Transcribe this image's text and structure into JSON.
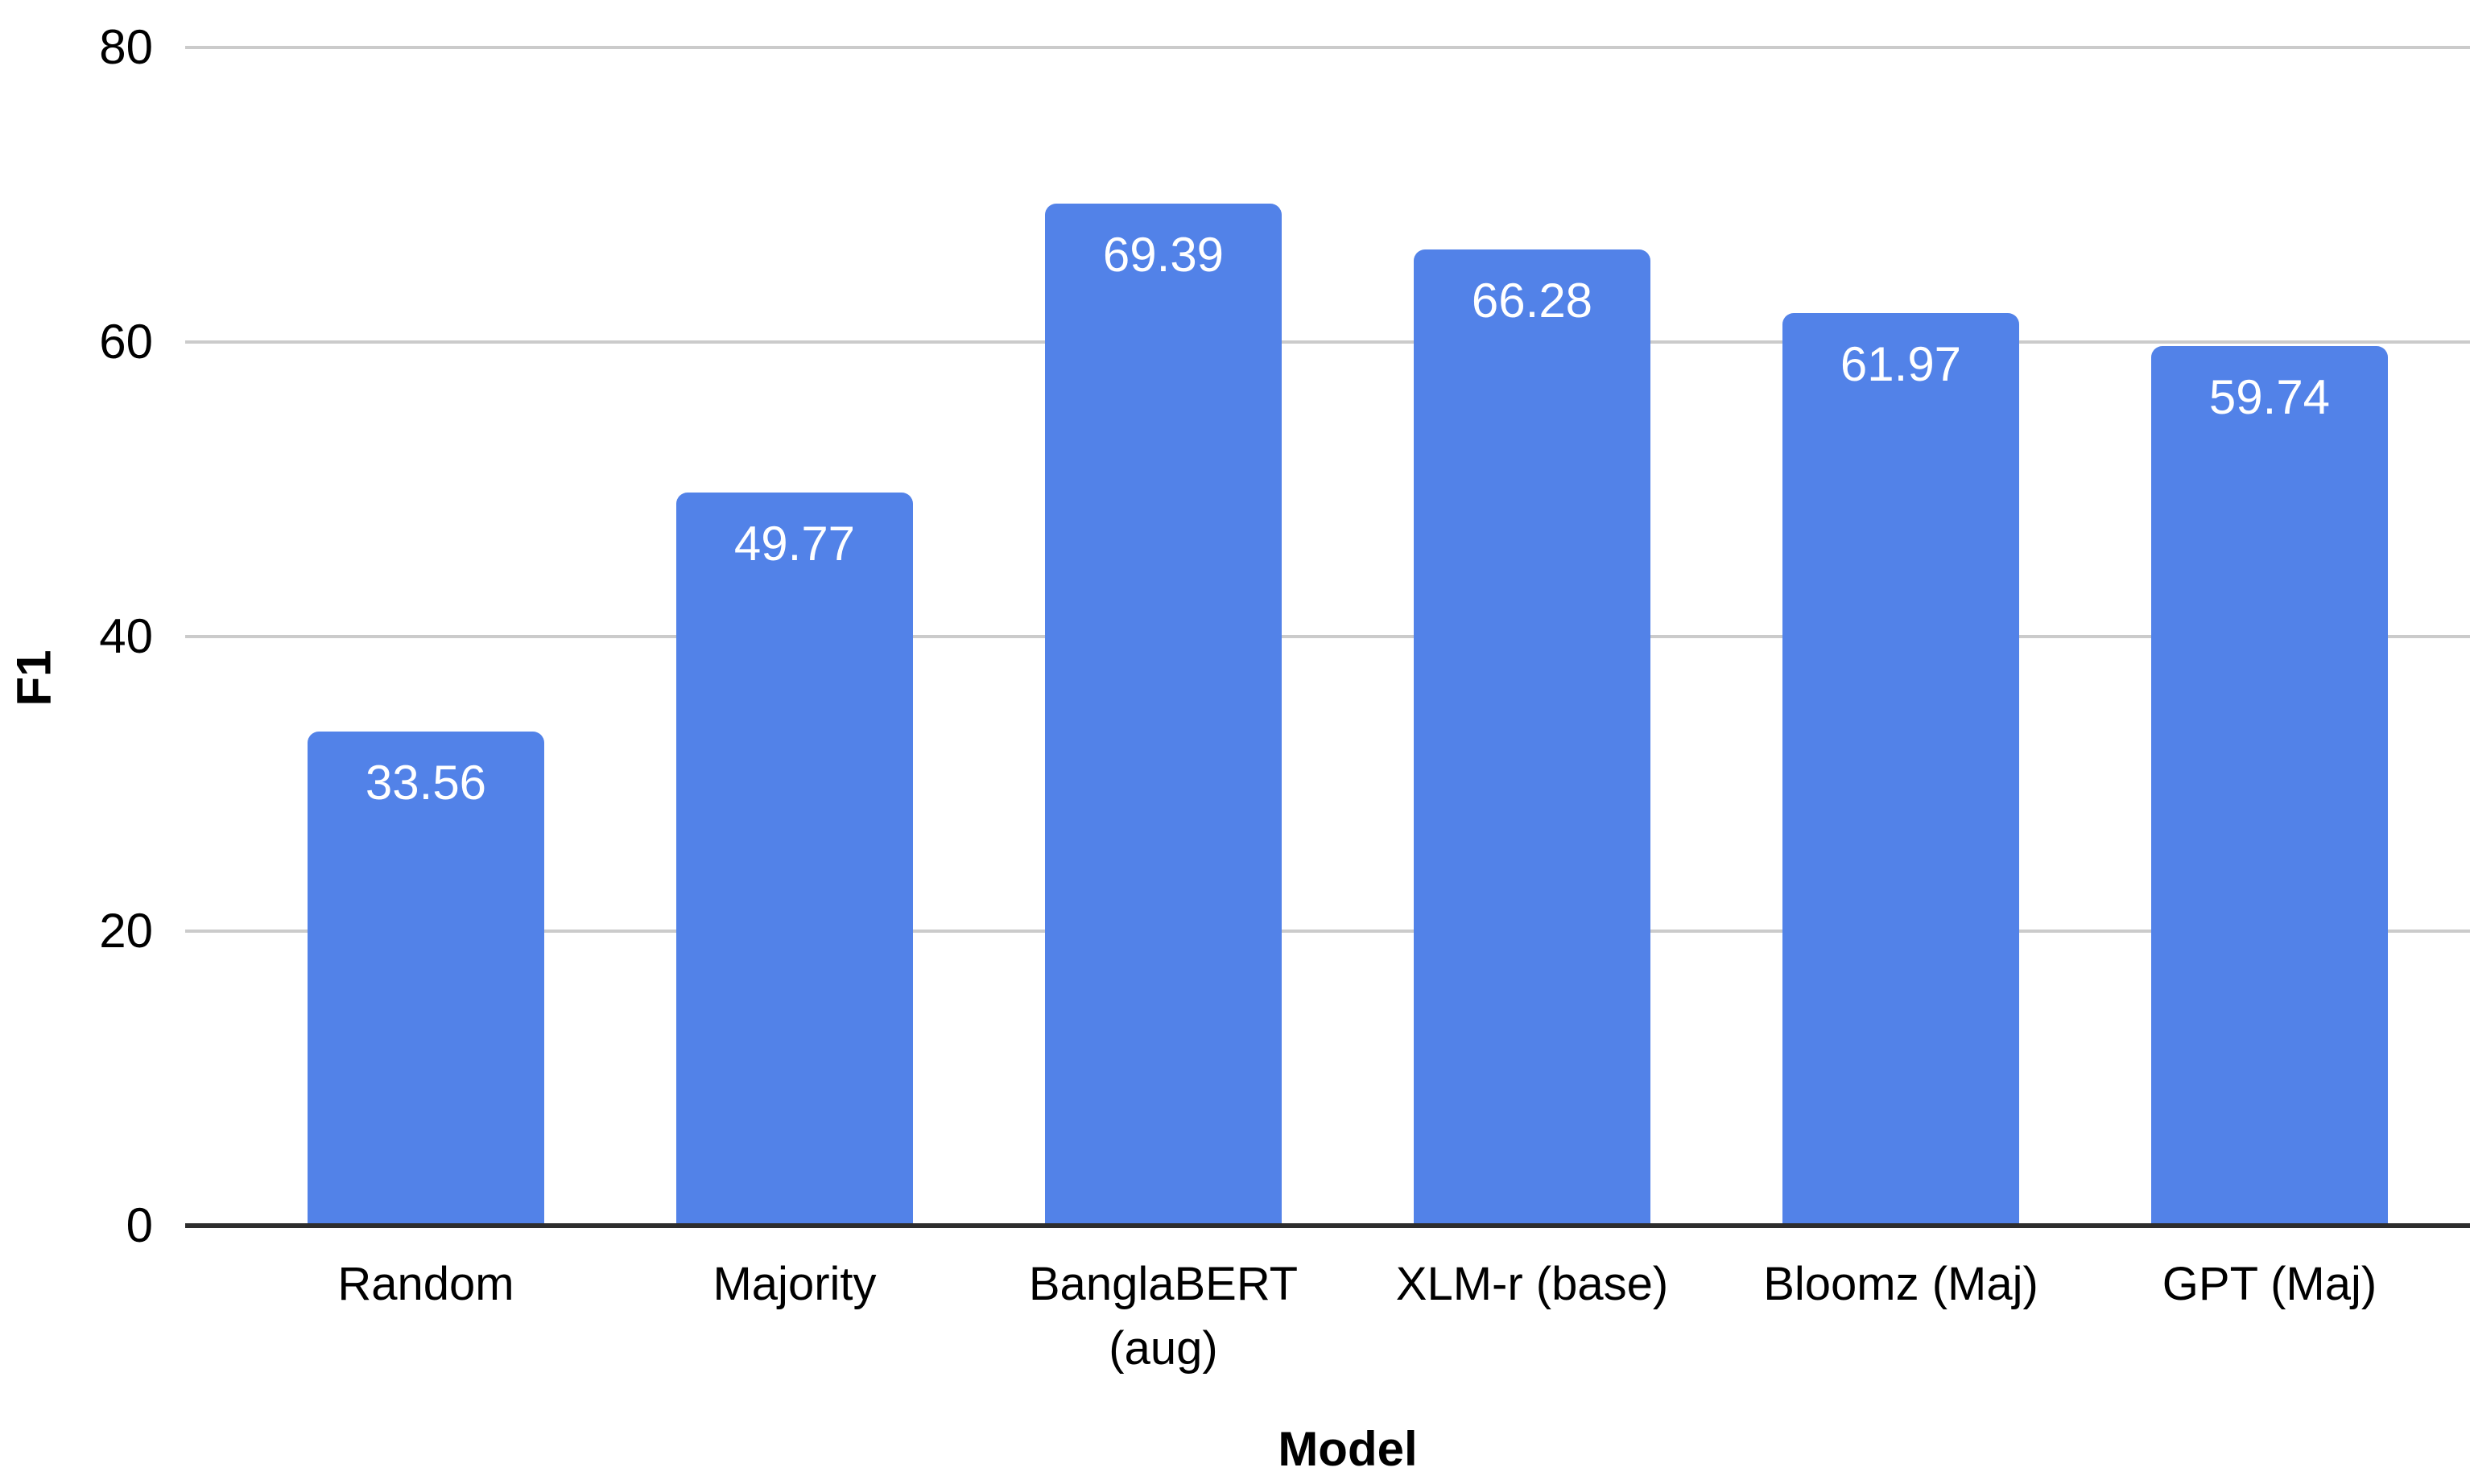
{
  "chart_data": {
    "type": "bar",
    "title": "",
    "xlabel": "Model",
    "ylabel": "F1",
    "categories": [
      "Random",
      "Majority",
      "BanglaBERT (aug)",
      "XLM-r (base)",
      "Bloomz (Maj)",
      "GPT (Maj)"
    ],
    "category_lines": [
      [
        "Random"
      ],
      [
        "Majority"
      ],
      [
        "BanglaBERT",
        "(aug)"
      ],
      [
        "XLM-r (base)"
      ],
      [
        "Bloomz (Maj)"
      ],
      [
        "GPT (Maj)"
      ]
    ],
    "values": [
      33.56,
      49.77,
      69.39,
      66.28,
      61.97,
      59.74
    ],
    "value_labels": [
      "33.56",
      "49.77",
      "69.39",
      "66.28",
      "61.97",
      "59.74"
    ],
    "ylim": [
      0,
      80
    ],
    "yticks": [
      0,
      20,
      40,
      60,
      80
    ],
    "grid": "horizontal",
    "legend": "none",
    "colors": {
      "bar": "#5282e8",
      "grid": "#cbcbcb",
      "axis_line": "#2d2d2d",
      "value_text": "#ffffff",
      "label_text": "#000000",
      "background": "#ffffff"
    }
  }
}
